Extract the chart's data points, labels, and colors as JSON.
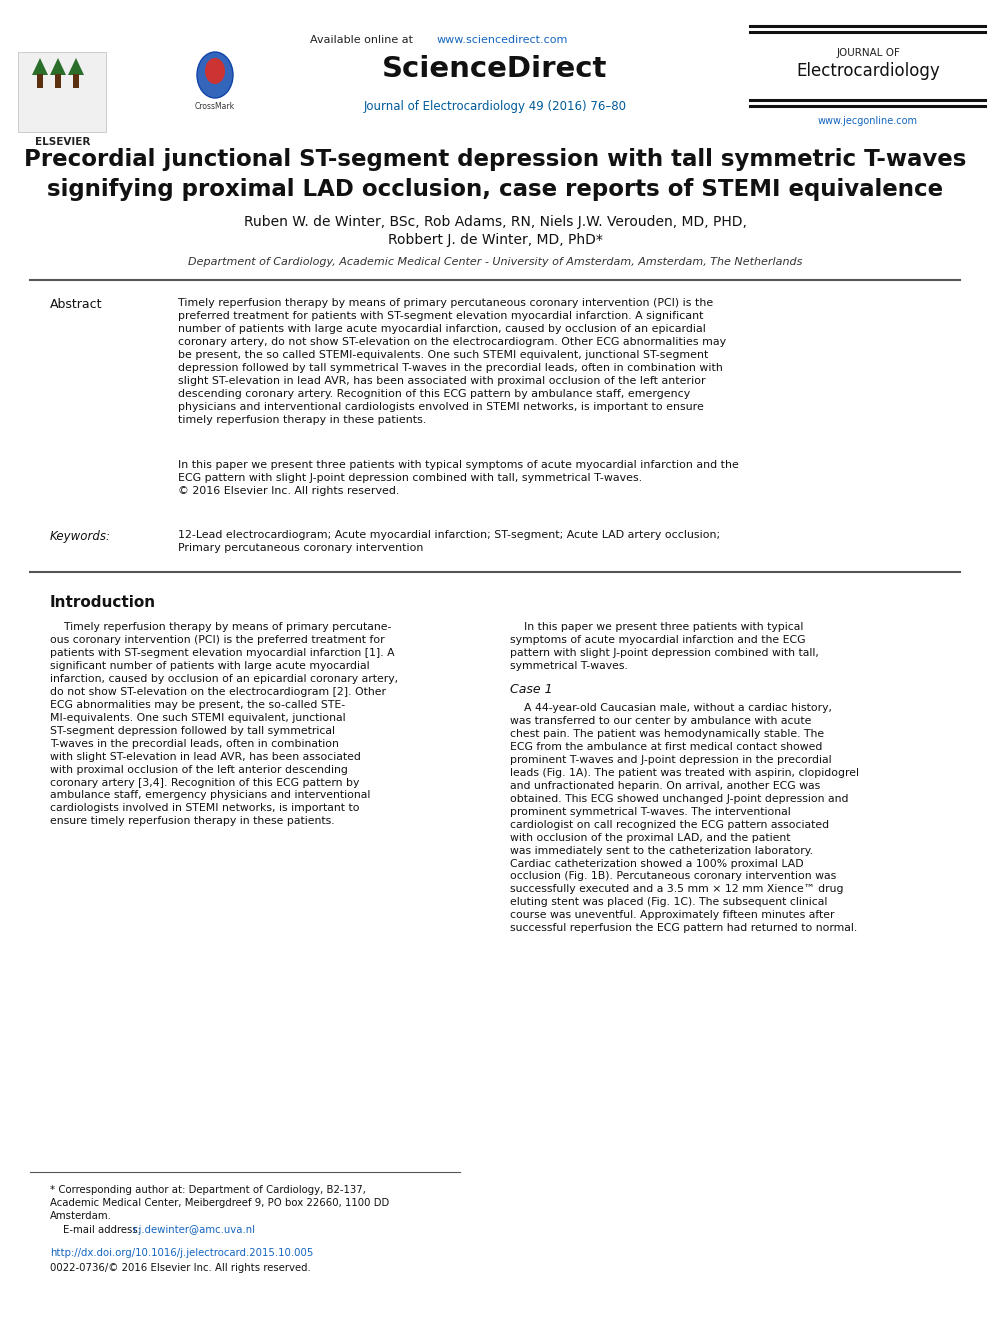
{
  "bg_color": "#ffffff",
  "elsevier_text": "ELSEVIER",
  "crossmark_label": "CrossMark",
  "available_online_prefix": "Available online at ",
  "url": "www.sciencedirect.com",
  "sciencedirect_bold": "ScienceDirect",
  "journal_line": "Journal of Electrocardiology 49 (2016) 76–80",
  "journal_of": "JOURNAL OF",
  "electrocardiology_header": "Electrocardiology",
  "website": "www.jecgonline.com",
  "title_line1": "Precordial junctional ST-segment depression with tall symmetric T-waves",
  "title_line2": "signifying proximal LAD occlusion, case reports of STEMI equivalence",
  "authors_line1": "Ruben W. de Winter, BSc, Rob Adams, RN, Niels J.W. Verouden, MD, PHD,",
  "authors_line2": "Robbert J. de Winter, MD, PhD*",
  "affiliation": "Department of Cardiology, Academic Medical Center - University of Amsterdam, Amsterdam, The Netherlands",
  "abstract_label": "Abstract",
  "abstract_p1": "Timely reperfusion therapy by means of primary percutaneous coronary intervention (PCI) is the\npreferred treatment for patients with ST-segment elevation myocardial infarction. A significant\nnumber of patients with large acute myocardial infarction, caused by occlusion of an epicardial\ncoronary artery, do not show ST-elevation on the electrocardiogram. Other ECG abnormalities may\nbe present, the so called STEMI-equivalents. One such STEMI equivalent, junctional ST-segment\ndepression followed by tall symmetrical T-waves in the precordial leads, often in combination with\nslight ST-elevation in lead AVR, has been associated with proximal occlusion of the left anterior\ndescending coronary artery. Recognition of this ECG pattern by ambulance staff, emergency\nphysicians and interventional cardiologists envolved in STEMI networks, is important to ensure\ntimely reperfusion therapy in these patients.",
  "abstract_p2": "In this paper we present three patients with typical symptoms of acute myocardial infarction and the\nECG pattern with slight J-point depression combined with tall, symmetrical T-waves.\n© 2016 Elsevier Inc. All rights reserved.",
  "keywords_label": "Keywords:",
  "keywords_text": "12-Lead electrocardiogram; Acute myocardial infarction; ST-segment; Acute LAD artery occlusion;\nPrimary percutaneous coronary intervention",
  "intro_heading": "Introduction",
  "intro_left": "    Timely reperfusion therapy by means of primary percutane-\nous coronary intervention (PCI) is the preferred treatment for\npatients with ST-segment elevation myocardial infarction [1]. A\nsignificant number of patients with large acute myocardial\ninfarction, caused by occlusion of an epicardial coronary artery,\ndo not show ST-elevation on the electrocardiogram [2]. Other\nECG abnormalities may be present, the so-called STE-\nMI-equivalents. One such STEMI equivalent, junctional\nST-segment depression followed by tall symmetrical\nT-waves in the precordial leads, often in combination\nwith slight ST-elevation in lead AVR, has been associated\nwith proximal occlusion of the left anterior descending\ncoronary artery [3,4]. Recognition of this ECG pattern by\nambulance staff, emergency physicians and interventional\ncardiologists involved in STEMI networks, is important to\nensure timely reperfusion therapy in these patients.",
  "intro_right_p1": "    In this paper we present three patients with typical\nsymptoms of acute myocardial infarction and the ECG\npattern with slight J-point depression combined with tall,\nsymmetrical T-waves.",
  "case1_heading": "Case 1",
  "case1_text": "    A 44-year-old Caucasian male, without a cardiac history,\nwas transferred to our center by ambulance with acute\nchest pain. The patient was hemodynamically stable. The\nECG from the ambulance at first medical contact showed\nprominent T-waves and J-point depression in the precordial\nleads (Fig. 1A). The patient was treated with aspirin, clopidogrel\nand unfractionated heparin. On arrival, another ECG was\nobtained. This ECG showed unchanged J-point depression and\nprominent symmetrical T-waves. The interventional\ncardiologist on call recognized the ECG pattern associated\nwith occlusion of the proximal LAD, and the patient\nwas immediately sent to the catheterization laboratory.\nCardiac catheterization showed a 100% proximal LAD\nocclusion (Fig. 1B). Percutaneous coronary intervention was\nsuccessfully executed and a 3.5 mm × 12 mm Xience™ drug\neluting stent was placed (Fig. 1C). The subsequent clinical\ncourse was uneventful. Approximately fifteen minutes after\nsuccessful reperfusion the ECG pattern had returned to normal.",
  "footnote_star": "* Corresponding author at: Department of Cardiology, B2-137,\nAcademic Medical Center, Meibergdreef 9, PO box 22660, 1100 DD\nAmsterdam.",
  "email_label": "    E-mail address: ",
  "email": "r.j.dewinter@amc.uva.nl",
  "doi": "http://dx.doi.org/10.1016/j.jelectrocard.2015.10.005",
  "issn": "0022-0736/© 2016 Elsevier Inc. All rights reserved.",
  "color_blue": "#005B9A",
  "color_url": "#1565C0",
  "color_black": "#111111",
  "color_gray": "#444444",
  "color_rule": "#888888"
}
